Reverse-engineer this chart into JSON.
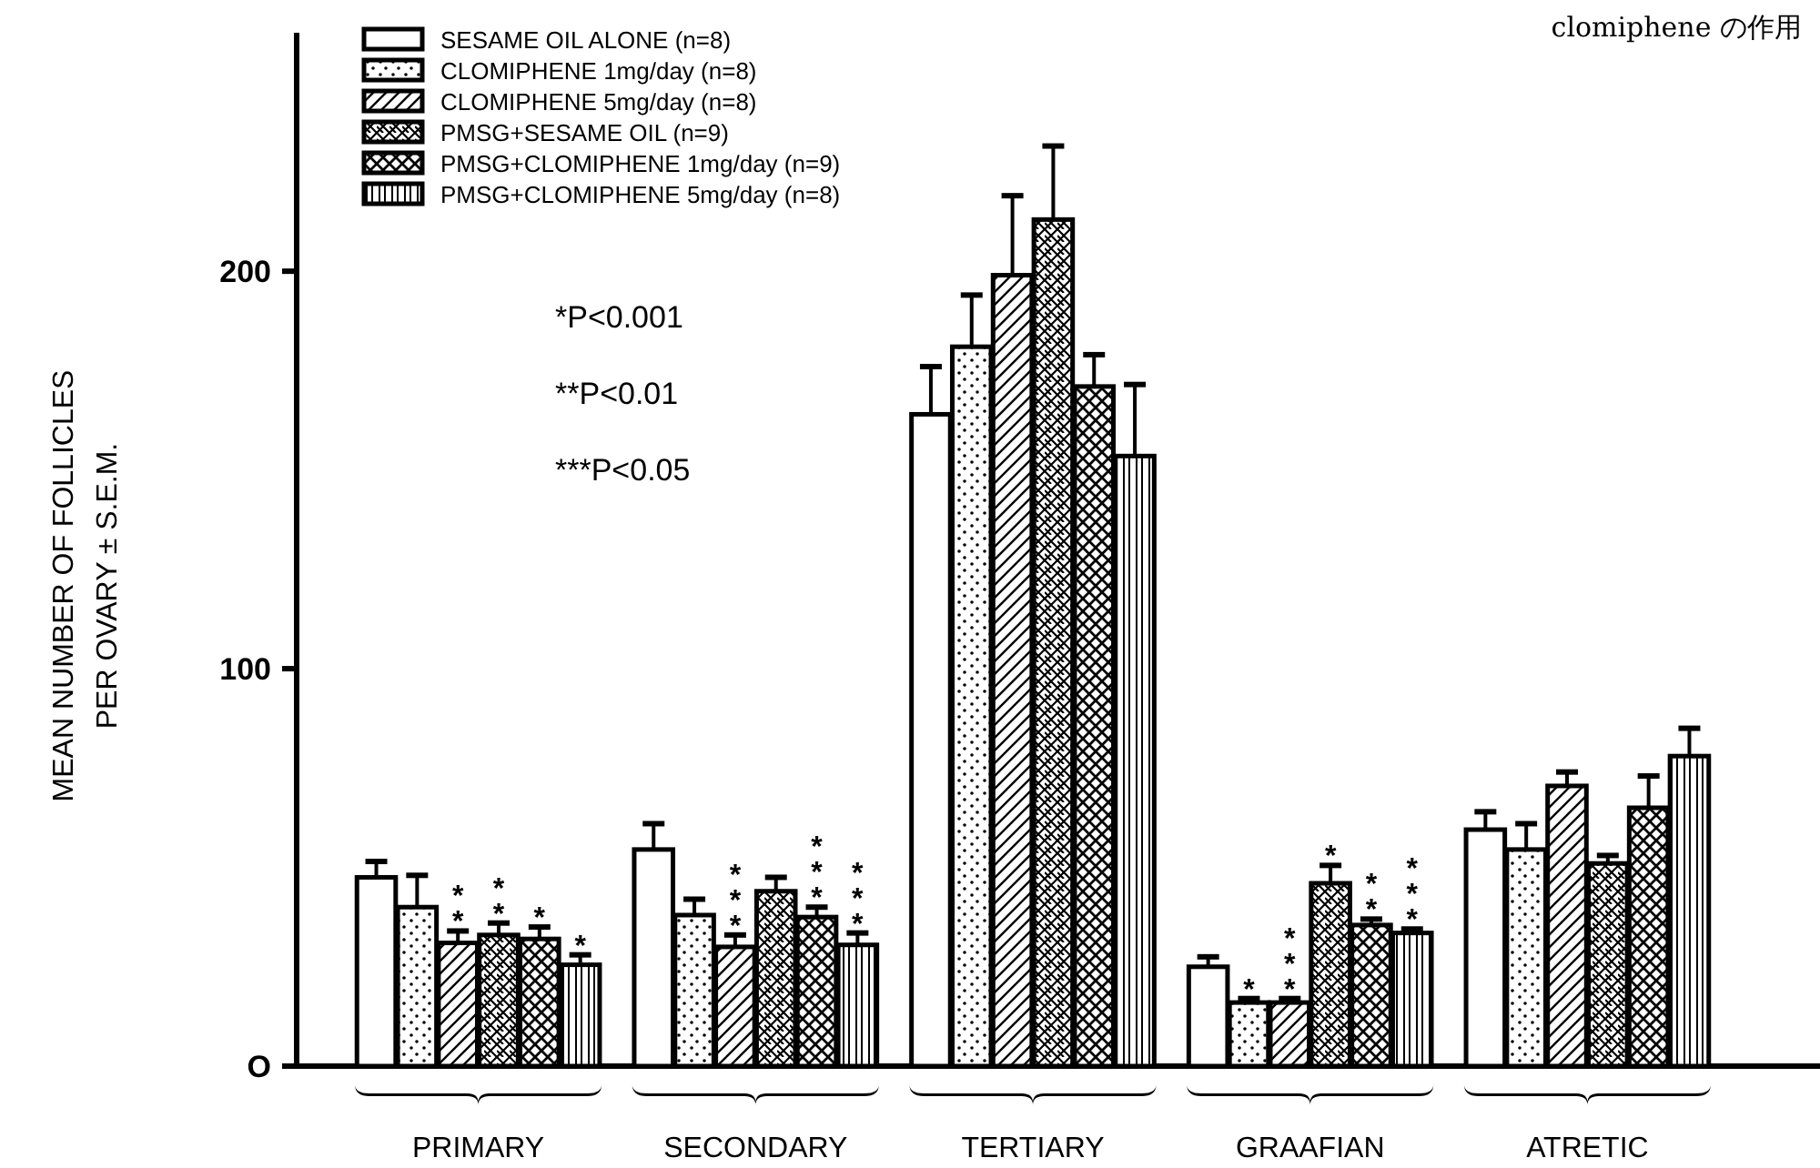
{
  "chart_data": {
    "type": "bar",
    "title": "clomiphene の作用",
    "ylabel": "MEAN NUMBER OF FOLLICLES\nPER OVARY ± S.E.M.",
    "categories": [
      "PRIMARY",
      "SECONDARY",
      "TERTIARY",
      "GRAAFIAN",
      "ATRETIC"
    ],
    "ylim": [
      0,
      260
    ],
    "yticks": [
      {
        "value": 0,
        "label": "O"
      },
      100,
      200
    ],
    "legend": "top left",
    "grid": false,
    "annotations": [
      "*P<0.001",
      "**P<0.01",
      "***P<0.05"
    ],
    "series": [
      {
        "name": "SESAME OIL ALONE (n=8)",
        "color": "#000000",
        "values": [
          47.5,
          54.5,
          164,
          25,
          59.5
        ],
        "errors": [
          4,
          6.5,
          12,
          2.5,
          4.5
        ],
        "value_labels": [
          null,
          null,
          null,
          null,
          null
        ]
      },
      {
        "name": "CLOMIPHENE 1mg/day (n=8)",
        "color": "#000000",
        "values": [
          40,
          38,
          181,
          16,
          54.5
        ],
        "errors": [
          8,
          4,
          13,
          1,
          6.5
        ],
        "value_labels": [
          null,
          null,
          null,
          "*",
          null
        ]
      },
      {
        "name": "CLOMIPHENE 5mg/day (n=8)",
        "color": "#000000",
        "values": [
          31,
          30,
          199,
          16,
          70.5
        ],
        "errors": [
          3,
          3,
          20,
          1,
          3.5
        ],
        "value_labels": [
          "**",
          "***",
          null,
          "***",
          null
        ]
      },
      {
        "name": "PMSG+SESAME OIL (n=9)",
        "color": "#000000",
        "values": [
          33,
          44,
          213,
          46,
          51
        ],
        "errors": [
          3,
          3.5,
          18.5,
          4.5,
          2
        ],
        "value_labels": [
          "**",
          null,
          null,
          "*",
          null
        ]
      },
      {
        "name": "PMSG+CLOMIPHENE 1mg/day (n=9)",
        "color": "#000000",
        "values": [
          32,
          37.5,
          171,
          35.5,
          65
        ],
        "errors": [
          3,
          2.5,
          8,
          1.5,
          8
        ],
        "value_labels": [
          "*",
          "***",
          null,
          "**",
          null
        ]
      },
      {
        "name": "PMSG+CLOMIPHENE 5mg/day (n=8)",
        "color": "#000000",
        "values": [
          25.5,
          30.5,
          153.5,
          33.5,
          78
        ],
        "errors": [
          2.5,
          3,
          18,
          1,
          7
        ],
        "value_labels": [
          "*",
          "***",
          null,
          "***",
          null
        ]
      }
    ]
  }
}
